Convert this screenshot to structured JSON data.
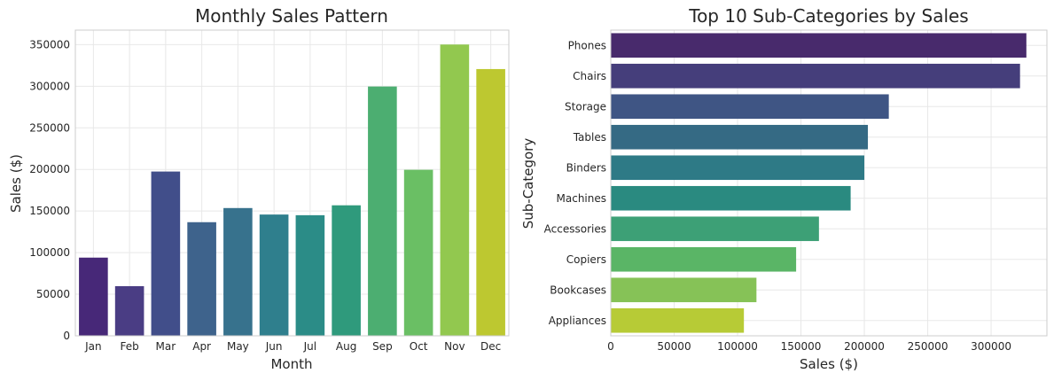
{
  "chart_data": [
    {
      "type": "bar",
      "title": "Monthly Sales Pattern",
      "xlabel": "Month",
      "ylabel": "Sales ($)",
      "categories": [
        "Jan",
        "Feb",
        "Mar",
        "Apr",
        "May",
        "Jun",
        "Jul",
        "Aug",
        "Sep",
        "Oct",
        "Nov",
        "Dec"
      ],
      "values": [
        94000,
        59700,
        197500,
        136600,
        153600,
        145800,
        145000,
        156900,
        299700,
        199600,
        350200,
        320700
      ],
      "ylim": [
        0,
        367500
      ],
      "yticks": [
        0,
        50000,
        100000,
        150000,
        200000,
        250000,
        300000,
        350000
      ],
      "colors": [
        "#472878",
        "#4a3d84",
        "#414e8a",
        "#3e638c",
        "#37728d",
        "#2f7f8d",
        "#2b8c87",
        "#2f9a7c",
        "#4cae71",
        "#6abf64",
        "#92c84f",
        "#bdc830"
      ],
      "grid": true
    },
    {
      "type": "bar",
      "orientation": "horizontal",
      "title": "Top 10 Sub-Categories by Sales",
      "xlabel": "Sales ($)",
      "ylabel": "Sub-Category",
      "categories": [
        "Phones",
        "Chairs",
        "Storage",
        "Tables",
        "Binders",
        "Machines",
        "Accessories",
        "Copiers",
        "Bookcases",
        "Appliances"
      ],
      "values": [
        327800,
        322800,
        219300,
        202800,
        200000,
        189200,
        164200,
        146200,
        114900,
        105000
      ],
      "xlim": [
        0,
        344000
      ],
      "xticks": [
        0,
        50000,
        100000,
        150000,
        200000,
        250000,
        300000
      ],
      "colors": [
        "#482a6c",
        "#453e7b",
        "#3f5584",
        "#356a84",
        "#2e7a86",
        "#2a8a80",
        "#3da076",
        "#5ab566",
        "#86c257",
        "#b7cb36"
      ],
      "grid": true
    }
  ]
}
